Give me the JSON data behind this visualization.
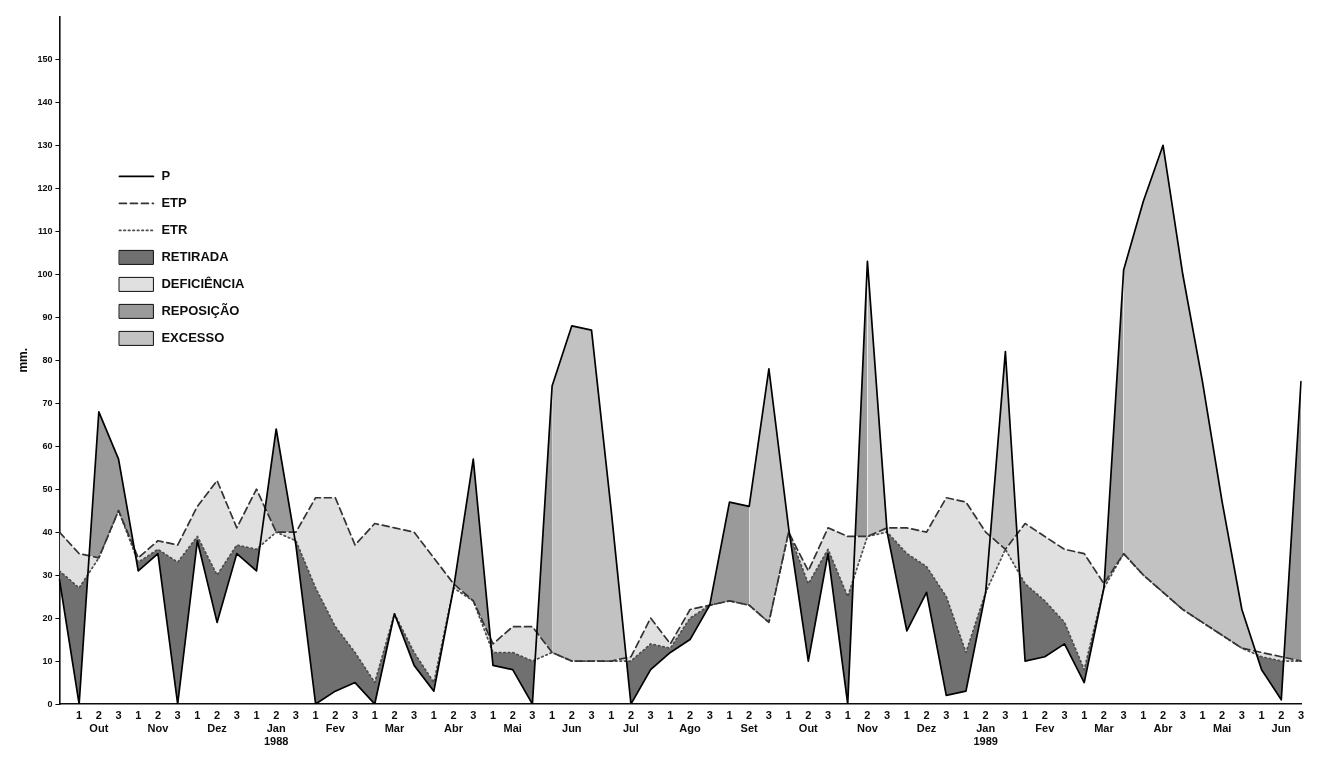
{
  "chart_data": {
    "type": "line",
    "ylabel": "mm.",
    "ylim": [
      0,
      160
    ],
    "yticks": [
      0,
      10,
      20,
      30,
      40,
      50,
      60,
      70,
      80,
      90,
      100,
      110,
      120,
      130,
      140,
      150
    ],
    "legend": "top left",
    "categories": [
      null,
      "1",
      "2\nOut",
      "3",
      "1",
      "2\nNov",
      "3",
      "1",
      "2\nDez",
      "3",
      "1",
      "2\nJan\n1988",
      "3",
      "1",
      "2\nFev",
      "3",
      "1",
      "2\nMar",
      "3",
      "1",
      "2\nAbr",
      "3",
      "1",
      "2\nMai",
      "3",
      "1",
      "2\nJun",
      "3",
      "1",
      "2\nJul",
      "3",
      "1",
      "2\nAgo",
      "3",
      "1",
      "2\nSet",
      "3",
      "1",
      "2\nOut",
      "3",
      "1",
      "2\nNov",
      "3",
      "1",
      "2\nDez",
      "3",
      "1",
      "2\nJan\n1989",
      "3",
      "1",
      "2\nFev",
      "3",
      "1",
      "2\nMar",
      "3",
      "1",
      "2\nAbr",
      "3",
      "1",
      "2\nMai",
      "3",
      "1",
      "2\nJun",
      "3"
    ],
    "series": [
      {
        "name": "P",
        "color": "#000000",
        "line_style": "solid",
        "values": [
          29,
          0,
          68,
          57,
          31,
          35,
          0,
          38,
          19,
          35,
          31,
          64,
          37,
          0,
          3,
          5,
          0,
          21,
          9,
          3,
          27,
          57,
          9,
          8,
          0,
          74,
          88,
          87,
          45,
          0,
          8,
          12,
          15,
          23,
          47,
          46,
          78,
          41,
          10,
          35,
          0,
          103,
          40,
          17,
          26,
          2,
          3,
          26,
          82,
          10,
          11,
          14,
          5,
          27,
          101,
          117,
          130,
          100,
          75,
          47,
          22,
          8,
          1,
          75
        ]
      },
      {
        "name": "ETP",
        "color": "#333333",
        "line_style": "dashed",
        "values": [
          40,
          35,
          34,
          45,
          34,
          38,
          37,
          46,
          52,
          41,
          50,
          40,
          40,
          48,
          48,
          37,
          42,
          41,
          40,
          34,
          28,
          24,
          14,
          18,
          18,
          12,
          10,
          10,
          10,
          11,
          20,
          14,
          22,
          23,
          24,
          23,
          19,
          40,
          31,
          41,
          39,
          39,
          41,
          41,
          40,
          48,
          47,
          40,
          36,
          42,
          39,
          36,
          35,
          28,
          35,
          30,
          26,
          22,
          19,
          16,
          13,
          12,
          11,
          10
        ]
      },
      {
        "name": "ETR",
        "color": "#4d4d4d",
        "line_style": "dotted",
        "values": [
          31,
          27,
          34,
          45,
          33,
          36,
          33,
          39,
          30,
          37,
          36,
          40,
          38,
          27,
          18,
          12,
          5,
          21,
          12,
          5,
          27,
          24,
          12,
          12,
          10,
          12,
          10,
          10,
          10,
          10,
          14,
          13,
          20,
          23,
          24,
          23,
          19,
          40,
          28,
          36,
          25,
          39,
          40,
          35,
          32,
          25,
          12,
          26,
          36,
          28,
          24,
          19,
          8,
          27,
          35,
          30,
          26,
          22,
          19,
          16,
          13,
          11,
          10,
          10
        ]
      },
      {
        "name": "RETIRADA",
        "type": "area",
        "color": "#707070",
        "values": [
          null,
          null,
          null,
          null,
          null,
          null,
          null,
          null,
          null,
          null,
          null,
          null,
          null,
          null,
          null,
          null,
          null,
          null,
          null,
          null,
          null,
          null,
          null,
          null,
          null,
          null,
          null,
          null,
          null,
          null,
          null,
          null,
          null,
          null,
          null,
          null,
          null,
          null,
          null,
          null,
          null,
          null,
          null,
          null,
          null,
          null,
          null,
          null,
          null,
          null,
          null,
          null,
          null,
          null,
          null,
          null,
          null,
          null,
          null,
          null,
          null,
          null,
          null,
          null
        ],
        "upper": [
          31,
          27,
          34,
          45,
          33,
          36,
          33,
          39,
          30,
          37,
          36,
          40,
          38,
          27,
          18,
          12,
          5,
          21,
          12,
          5,
          27,
          24,
          12,
          12,
          10,
          12,
          10,
          10,
          10,
          10,
          14,
          13,
          20,
          23,
          24,
          23,
          19,
          40,
          28,
          36,
          25,
          39,
          40,
          35,
          32,
          25,
          12,
          26,
          36,
          28,
          24,
          19,
          8,
          27,
          35,
          30,
          26,
          22,
          19,
          16,
          13,
          11,
          10,
          10
        ],
        "lower": [
          29,
          0,
          68,
          57,
          31,
          35,
          0,
          38,
          19,
          35,
          31,
          64,
          37,
          0,
          3,
          5,
          0,
          21,
          9,
          3,
          27,
          57,
          9,
          8,
          0,
          74,
          88,
          87,
          45,
          0,
          8,
          12,
          15,
          23,
          47,
          46,
          78,
          41,
          10,
          35,
          0,
          103,
          40,
          17,
          26,
          2,
          3,
          26,
          82,
          10,
          11,
          14,
          5,
          27,
          101,
          117,
          130,
          100,
          75,
          47,
          22,
          8,
          1,
          75
        ]
      },
      {
        "name": "DEFICIÊNCIA",
        "type": "area",
        "color": "#e0e0e0",
        "values": [
          null,
          null,
          null,
          null,
          null,
          null,
          null,
          null,
          null,
          null,
          null,
          null,
          null,
          null,
          null,
          null,
          null,
          null,
          null,
          null,
          null,
          null,
          null,
          null,
          null,
          null,
          null,
          null,
          null,
          null,
          null,
          null,
          null,
          null,
          null,
          null,
          null,
          null,
          null,
          null,
          null,
          null,
          null,
          null,
          null,
          null,
          null,
          null,
          null,
          null,
          null,
          null,
          null,
          null,
          null,
          null,
          null,
          null,
          null,
          null,
          null,
          null,
          null,
          null
        ],
        "upper": [
          40,
          35,
          34,
          45,
          34,
          38,
          37,
          46,
          52,
          41,
          50,
          40,
          40,
          48,
          48,
          37,
          42,
          41,
          40,
          34,
          28,
          24,
          14,
          18,
          18,
          12,
          10,
          10,
          10,
          11,
          20,
          14,
          22,
          23,
          24,
          23,
          19,
          40,
          31,
          41,
          39,
          39,
          41,
          41,
          40,
          48,
          47,
          40,
          36,
          42,
          39,
          36,
          35,
          28,
          35,
          30,
          26,
          22,
          19,
          16,
          13,
          12,
          11,
          10
        ],
        "lower": [
          31,
          27,
          34,
          45,
          33,
          36,
          33,
          39,
          30,
          37,
          36,
          40,
          38,
          27,
          18,
          12,
          5,
          21,
          12,
          5,
          27,
          24,
          12,
          12,
          10,
          12,
          10,
          10,
          10,
          10,
          14,
          13,
          20,
          23,
          24,
          23,
          19,
          40,
          28,
          36,
          25,
          39,
          40,
          35,
          32,
          25,
          12,
          26,
          36,
          28,
          24,
          19,
          8,
          27,
          35,
          30,
          26,
          22,
          19,
          16,
          13,
          11,
          10,
          10
        ]
      },
      {
        "name": "REPOSIÇÃO",
        "type": "area",
        "color": "#9a9a9a",
        "values": [
          null,
          null,
          null,
          null,
          null,
          null,
          null,
          null,
          null,
          null,
          null,
          null,
          null,
          null,
          null,
          null,
          null,
          null,
          null,
          null,
          null,
          null,
          null,
          null,
          null,
          null,
          null,
          null,
          null,
          null,
          null,
          null,
          null,
          null,
          null,
          null,
          null,
          null,
          null,
          null,
          null,
          null,
          null,
          null,
          null,
          null,
          null,
          null,
          null,
          null,
          null,
          null,
          null,
          null,
          null,
          null,
          null,
          null,
          null,
          null,
          null,
          null,
          null,
          null
        ],
        "upper": [
          null,
          0,
          68,
          57,
          31,
          null,
          null,
          null,
          null,
          null,
          31,
          64,
          37,
          null,
          null,
          null,
          null,
          null,
          null,
          null,
          27,
          57,
          9,
          null,
          0,
          74,
          null,
          null,
          null,
          null,
          null,
          null,
          15,
          23,
          47,
          46,
          null,
          null,
          null,
          null,
          0,
          103,
          null,
          null,
          null,
          null,
          null,
          null,
          null,
          null,
          null,
          null,
          5,
          27,
          101,
          null,
          null,
          null,
          null,
          null,
          null,
          null,
          1,
          75
        ],
        "lower": [
          null,
          35,
          34,
          45,
          34,
          null,
          null,
          null,
          null,
          null,
          50,
          40,
          40,
          null,
          null,
          null,
          null,
          null,
          null,
          null,
          28,
          24,
          14,
          null,
          18,
          12,
          null,
          null,
          null,
          null,
          null,
          null,
          22,
          23,
          24,
          23,
          null,
          null,
          null,
          null,
          39,
          39,
          null,
          null,
          null,
          null,
          null,
          null,
          null,
          null,
          null,
          null,
          35,
          28,
          35,
          null,
          null,
          null,
          null,
          null,
          null,
          null,
          11,
          10
        ]
      },
      {
        "name": "EXCESSO",
        "type": "area",
        "color": "#c2c2c2",
        "values": [
          null,
          null,
          null,
          null,
          null,
          null,
          null,
          null,
          null,
          null,
          null,
          null,
          null,
          null,
          null,
          null,
          null,
          null,
          null,
          null,
          null,
          null,
          null,
          null,
          null,
          null,
          null,
          null,
          null,
          null,
          null,
          null,
          null,
          null,
          null,
          null,
          null,
          null,
          null,
          null,
          null,
          null,
          null,
          null,
          null,
          null,
          null,
          null,
          null,
          null,
          null,
          null,
          null,
          null,
          null,
          null,
          null,
          null,
          null,
          null,
          null,
          null,
          null,
          null
        ],
        "upper": [
          null,
          null,
          null,
          null,
          null,
          null,
          null,
          null,
          null,
          null,
          null,
          null,
          null,
          null,
          null,
          null,
          null,
          null,
          null,
          null,
          null,
          null,
          null,
          null,
          null,
          74,
          88,
          87,
          45,
          0,
          null,
          null,
          null,
          null,
          null,
          46,
          78,
          41,
          10,
          null,
          null,
          103,
          40,
          null,
          null,
          null,
          null,
          26,
          82,
          10,
          null,
          null,
          null,
          null,
          101,
          117,
          130,
          100,
          75,
          47,
          22,
          8,
          null,
          null
        ],
        "lower": [
          null,
          null,
          null,
          null,
          null,
          null,
          null,
          null,
          null,
          null,
          null,
          null,
          null,
          null,
          null,
          null,
          null,
          null,
          null,
          null,
          null,
          null,
          null,
          null,
          null,
          12,
          10,
          10,
          10,
          11,
          null,
          null,
          null,
          null,
          null,
          23,
          19,
          40,
          31,
          null,
          null,
          39,
          41,
          null,
          null,
          null,
          null,
          40,
          36,
          42,
          null,
          null,
          null,
          null,
          35,
          30,
          26,
          22,
          19,
          16,
          13,
          12,
          null,
          null
        ]
      }
    ]
  }
}
